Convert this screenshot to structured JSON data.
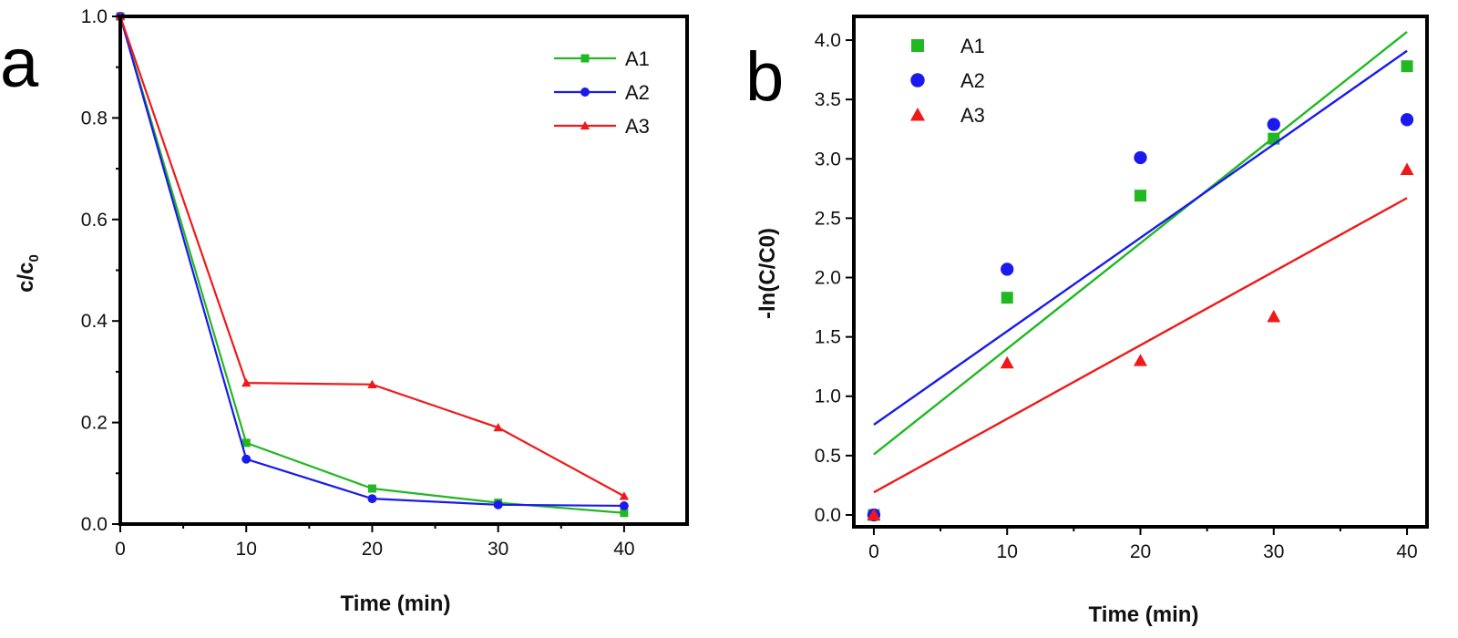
{
  "colors": {
    "A1": "#22b822",
    "A2": "#1a1aee",
    "A3": "#ee1a1a"
  },
  "chart_data": [
    {
      "type": "line",
      "panel": "a",
      "xlabel": "Time (min)",
      "ylabel": "c/c",
      "ylabel_sub": "0",
      "xlim": [
        0,
        45
      ],
      "ylim": [
        0,
        1.0
      ],
      "xticks": [
        0,
        10,
        20,
        30,
        40
      ],
      "yticks": [
        0.0,
        0.2,
        0.4,
        0.6,
        0.8,
        1.0
      ],
      "legend_position": "top-right",
      "x": [
        0,
        10,
        20,
        30,
        40
      ],
      "series": [
        {
          "name": "A1",
          "marker": "square",
          "values": [
            1.0,
            0.16,
            0.07,
            0.042,
            0.022
          ]
        },
        {
          "name": "A2",
          "marker": "circle",
          "values": [
            1.0,
            0.128,
            0.05,
            0.038,
            0.036
          ]
        },
        {
          "name": "A3",
          "marker": "triangle",
          "values": [
            1.0,
            0.278,
            0.275,
            0.19,
            0.055
          ]
        }
      ],
      "grid": false
    },
    {
      "type": "scatter",
      "panel": "b",
      "xlabel": "Time (min)",
      "ylabel": "-ln(C/C0)",
      "xlim": [
        -1.5,
        41.5
      ],
      "ylim": [
        -0.1,
        4.2
      ],
      "xticks": [
        0,
        10,
        20,
        30,
        40
      ],
      "yticks": [
        0.0,
        0.5,
        1.0,
        1.5,
        2.0,
        2.5,
        3.0,
        3.5,
        4.0
      ],
      "legend_position": "top-left",
      "x": [
        0,
        10,
        20,
        30,
        40
      ],
      "series": [
        {
          "name": "A1",
          "marker": "square",
          "values": [
            0.0,
            1.83,
            2.69,
            3.17,
            3.78
          ],
          "fit": [
            0.51,
            4.07
          ]
        },
        {
          "name": "A2",
          "marker": "circle",
          "values": [
            0.0,
            2.07,
            3.01,
            3.29,
            3.33
          ],
          "fit": [
            0.76,
            3.91
          ]
        },
        {
          "name": "A3",
          "marker": "triangle",
          "values": [
            0.0,
            1.28,
            1.3,
            1.67,
            2.91
          ],
          "fit": [
            0.19,
            2.67
          ]
        }
      ],
      "fit_x": [
        0,
        40
      ],
      "grid": false
    }
  ]
}
